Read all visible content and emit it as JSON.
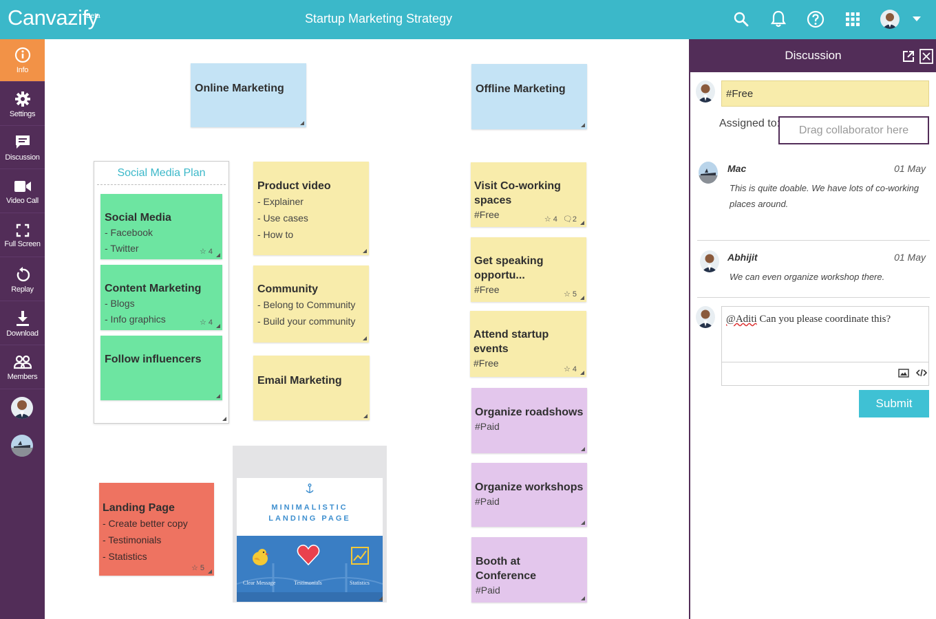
{
  "app": {
    "brand": "Canvazify",
    "badge": "Beta",
    "board_title": "Startup Marketing Strategy"
  },
  "topbar_icons": [
    "search-icon",
    "bell-icon",
    "help-icon",
    "apps-grid-icon",
    "user-avatar",
    "chevron-down-icon"
  ],
  "sidebar": {
    "items": [
      {
        "label": "Info",
        "icon": "info-icon",
        "active": true
      },
      {
        "label": "Settings",
        "icon": "gear-icon"
      },
      {
        "label": "Discussion",
        "icon": "chat-icon"
      },
      {
        "label": "Video Call",
        "icon": "video-icon"
      },
      {
        "label": "Full Screen",
        "icon": "fullscreen-icon"
      },
      {
        "label": "Replay",
        "icon": "replay-icon"
      },
      {
        "label": "Download",
        "icon": "download-icon"
      },
      {
        "label": "Members",
        "icon": "members-icon"
      }
    ]
  },
  "canvas": {
    "online_marketing": {
      "title": "Online Marketing"
    },
    "offline_marketing": {
      "title": "Offline Marketing"
    },
    "social_media_plan": {
      "title": "Social Media Plan"
    },
    "social_media": {
      "title": "Social Media",
      "lines": [
        "- Facebook",
        "- Twitter"
      ],
      "stars": "4"
    },
    "content_marketing": {
      "title": "Content Marketing",
      "lines": [
        "- Blogs",
        "- Info graphics"
      ],
      "stars": "4"
    },
    "follow_influencers": {
      "title": "Follow influencers"
    },
    "product_video": {
      "title": "Product video",
      "lines": [
        "- Explainer",
        "- Use cases",
        "- How to"
      ]
    },
    "community": {
      "title": "Community",
      "lines": [
        "- Belong to Community",
        "- Build your community"
      ]
    },
    "email_marketing": {
      "title": "Email Marketing"
    },
    "landing_page": {
      "title": "Landing Page",
      "lines": [
        "- Create better copy",
        "- Testimonials",
        "- Statistics"
      ],
      "stars": "5"
    },
    "image_card": {
      "title_line1": "MINIMALISTIC",
      "title_line2": "LANDING PAGE",
      "cap1": "Clear Message",
      "cap2": "Testimonials",
      "cap3": "Statistics"
    },
    "coworking": {
      "title": "Visit Co-working spaces",
      "tag": "#Free",
      "stars": "4",
      "comments": "2"
    },
    "speaking": {
      "title": "Get speaking opportu...",
      "tag": "#Free",
      "stars": "5"
    },
    "startup_events": {
      "title": "Attend startup events",
      "tag": "#Free",
      "stars": "4"
    },
    "roadshows": {
      "title": "Organize roadshows",
      "tag": "#Paid"
    },
    "workshops": {
      "title": "Organize workshops",
      "tag": "#Paid"
    },
    "booth": {
      "title": "Booth at Conference",
      "tag": "#Paid"
    }
  },
  "discussion": {
    "title": "Discussion",
    "topic_value": "#Free",
    "assigned_label": "Assigned to:",
    "assign_placeholder": "Drag collaborator here",
    "comments": [
      {
        "author": "Mac",
        "date": "01 May",
        "text": "This is quite doable. We have lots of co-working places around."
      },
      {
        "author": "Abhijit",
        "date": "01 May",
        "text": "We can even organize workshop there."
      }
    ],
    "reply_mention": "@Aditi",
    "reply_rest": " Can you please coordinate this?",
    "submit_label": "Submit"
  },
  "colors": {
    "topbar": "#3bb8c9",
    "sidebar": "#522d58",
    "active": "#f29247",
    "submit": "#3fc1d4"
  }
}
